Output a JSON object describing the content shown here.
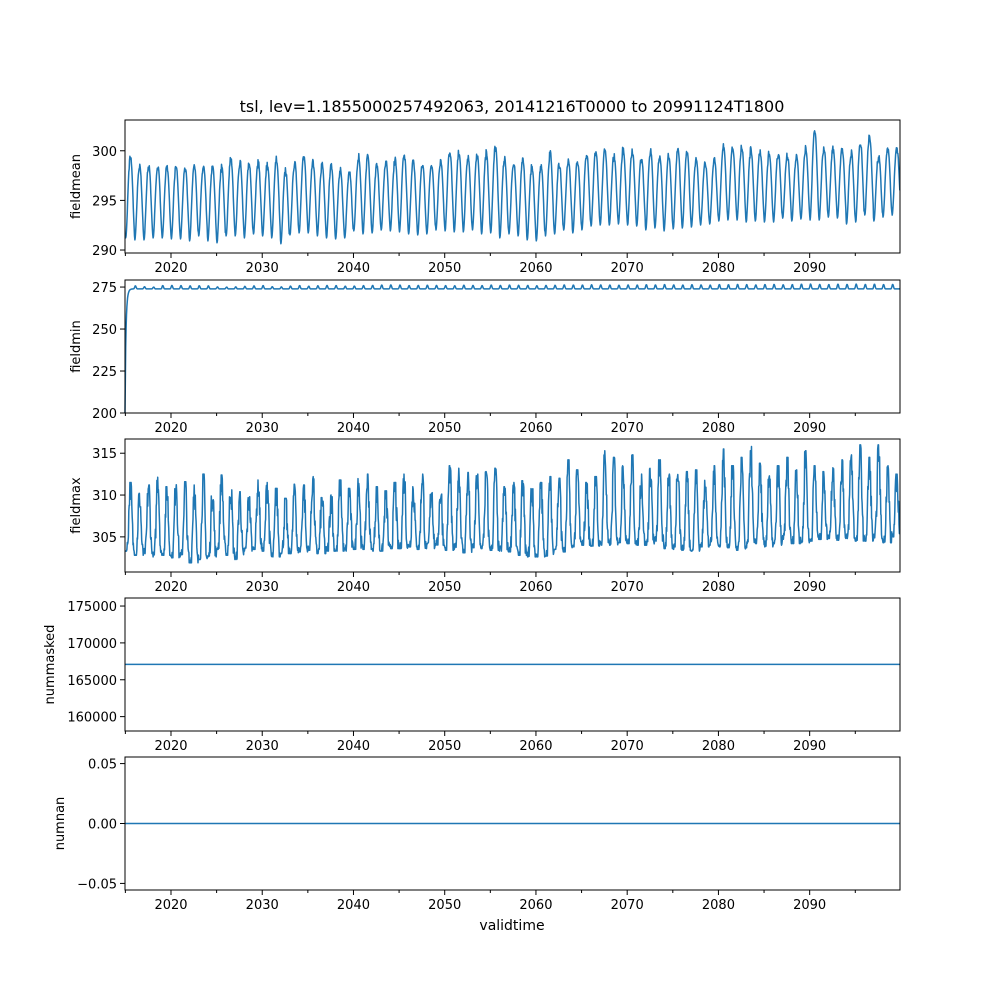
{
  "chart_data": {
    "type": "line",
    "title": "tsl, lev=1.1855000257492063, 20141216T0000 to 20991124T1800",
    "xlabel": "validtime",
    "xlim": [
      2014.96,
      2099.9
    ],
    "x_ticks": [
      "2020",
      "2030",
      "2040",
      "2050",
      "2060",
      "2070",
      "2080",
      "2090"
    ],
    "x_minor_ticks": [
      2015,
      2025,
      2035,
      2045,
      2055,
      2065,
      2075,
      2085,
      2095
    ],
    "line_color": "#1f77b4",
    "years": [
      2015,
      2099
    ],
    "panels": [
      {
        "ylabel": "fieldmean",
        "ylim": [
          289.7,
          303.1
        ],
        "y_ticks": [
          "290",
          "295",
          "300"
        ],
        "y_tick_values": [
          290,
          295,
          300
        ],
        "kind": "seasonal",
        "annual_max": [
          299.8,
          298.9,
          298.9,
          298.9,
          298.8,
          298.8,
          298.7,
          298.9,
          298.9,
          298.8,
          298.7,
          299.6,
          299.3,
          299.1,
          299.2,
          299.0,
          299.5,
          298.4,
          299.3,
          299.9,
          299.3,
          299.0,
          298.9,
          298.4,
          298.2,
          299.8,
          299.7,
          298.9,
          299.3,
          299.5,
          300.0,
          299.2,
          299.2,
          299.0,
          299.5,
          300.4,
          300.3,
          299.8,
          300.0,
          300.1,
          300.8,
          299.6,
          299.2,
          299.5,
          298.8,
          299.0,
          300.2,
          299.1,
          299.3,
          299.3,
          300.2,
          300.3,
          300.4,
          299.8,
          300.5,
          300.4,
          299.7,
          300.5,
          299.9,
          299.9,
          300.6,
          300.3,
          299.6,
          299.1,
          299.4,
          300.8,
          300.7,
          300.8,
          300.5,
          300.3,
          300.1,
          300.2,
          299.9,
          299.8,
          300.6,
          302.4,
          300.8,
          300.5,
          300.5,
          300.2,
          301.2,
          301.8,
          299.9,
          300.7,
          300.6
        ],
        "annual_min": [
          291.2,
          291.0,
          291.0,
          291.2,
          291.2,
          291.1,
          291.1,
          290.9,
          291.4,
          290.9,
          290.7,
          291.4,
          291.4,
          291.2,
          291.6,
          291.4,
          291.2,
          290.6,
          291.5,
          291.7,
          291.7,
          291.4,
          291.2,
          291.1,
          291.2,
          291.9,
          291.6,
          291.7,
          292.0,
          291.9,
          291.8,
          291.6,
          291.5,
          291.6,
          292.0,
          291.9,
          291.8,
          291.8,
          292.0,
          291.6,
          291.7,
          291.2,
          291.6,
          291.4,
          291.0,
          290.9,
          291.4,
          291.6,
          292.0,
          291.7,
          292.0,
          292.4,
          292.5,
          292.5,
          292.6,
          292.5,
          292.4,
          292.0,
          292.2,
          291.9,
          292.1,
          292.2,
          292.3,
          292.5,
          292.6,
          292.9,
          293.0,
          293.0,
          292.8,
          292.9,
          292.8,
          292.8,
          293.2,
          292.9,
          293.1,
          293.0,
          293.0,
          293.3,
          293.2,
          292.6,
          292.8,
          293.5,
          292.9,
          293.3,
          293.5
        ]
      },
      {
        "ylabel": "fieldmin",
        "ylim": [
          200,
          279.2
        ],
        "y_ticks": [
          "200",
          "225",
          "250",
          "275"
        ],
        "y_tick_values": [
          200,
          225,
          250,
          275
        ],
        "kind": "spinup",
        "start_value": 200,
        "base": 273.9,
        "annual_peak": [
          275.6,
          275.7,
          275.2,
          275.0,
          275.9,
          276.0,
          275.9,
          275.7,
          275.8,
          275.7,
          275.1,
          275.0,
          275.1,
          275.4,
          275.7,
          275.9,
          275.2,
          275.1,
          275.6,
          275.9,
          275.5,
          275.8,
          276.0,
          275.9,
          275.5,
          275.6,
          275.9,
          276.0,
          276.2,
          276.3,
          276.2,
          275.9,
          276.0,
          276.1,
          276.0,
          275.9,
          275.8,
          276.1,
          276.0,
          275.9,
          276.2,
          276.0,
          276.2,
          276.1,
          276.0,
          275.8,
          276.0,
          276.1,
          276.3,
          276.2,
          276.2,
          276.4,
          276.3,
          276.2,
          276.1,
          276.3,
          276.2,
          276.4,
          276.3,
          276.5,
          276.3,
          276.2,
          276.4,
          276.3,
          276.2,
          276.5,
          276.4,
          276.6,
          276.5,
          276.3,
          276.5,
          276.6,
          276.4,
          276.5,
          276.7,
          276.8,
          276.6,
          276.5,
          276.7,
          276.6,
          276.8,
          276.6,
          276.7,
          276.5,
          276.6
        ]
      },
      {
        "ylabel": "fieldmax",
        "ylim": [
          300.8,
          316.7
        ],
        "y_ticks": [
          "305",
          "310",
          "315"
        ],
        "y_tick_values": [
          305,
          310,
          315
        ],
        "kind": "noisy",
        "annual_max": [
          311.5,
          310.2,
          311.2,
          312.5,
          311.0,
          312.0,
          311.6,
          311.2,
          312.5,
          310.5,
          312.4,
          311.0,
          310.4,
          309.8,
          311.8,
          311.5,
          310.8,
          309.6,
          311.3,
          311.2,
          312.2,
          309.7,
          310.0,
          311.8,
          310.8,
          312.0,
          312.5,
          311.0,
          310.5,
          311.5,
          312.5,
          311.0,
          312.5,
          311.0,
          310.5,
          313.5,
          313.2,
          312.7,
          312.5,
          312.8,
          313.2,
          311.0,
          311.5,
          311.7,
          311.0,
          311.5,
          312.2,
          312.0,
          314.2,
          313.0,
          311.5,
          312.2,
          315.3,
          314.5,
          313.5,
          314.8,
          312.5,
          313.2,
          314.2,
          312.5,
          313.8,
          312.8,
          313.0,
          312.5,
          313.5,
          315.5,
          313.5,
          314.5,
          315.8,
          313.8,
          312.5,
          313.5,
          314.5,
          313.0,
          315.3,
          313.5,
          312.8,
          313.8,
          314.2,
          314.8,
          316.0,
          314.5,
          316.0,
          313.5,
          312.5
        ],
        "annual_min": [
          303.3,
          302.8,
          303.0,
          302.6,
          302.8,
          302.5,
          302.6,
          301.9,
          302.3,
          302.6,
          303.5,
          302.8,
          302.3,
          303.3,
          303.5,
          303.3,
          302.6,
          303.0,
          303.0,
          303.2,
          303.4,
          303.0,
          303.3,
          303.3,
          303.3,
          303.5,
          303.5,
          303.3,
          303.3,
          303.6,
          303.6,
          303.8,
          303.5,
          303.6,
          304.0,
          303.4,
          303.5,
          303.1,
          303.7,
          303.6,
          303.4,
          303.3,
          303.2,
          302.8,
          302.6,
          302.6,
          302.7,
          303.5,
          303.2,
          303.8,
          304.0,
          303.9,
          304.0,
          304.0,
          304.3,
          304.2,
          304.0,
          304.0,
          304.5,
          303.6,
          303.5,
          303.4,
          303.3,
          303.8,
          304.0,
          303.8,
          303.7,
          303.4,
          303.7,
          304.2,
          303.8,
          304.0,
          304.6,
          304.2,
          304.3,
          304.5,
          304.7,
          304.8,
          304.6,
          304.8,
          304.5,
          304.5,
          304.8,
          304.3,
          305.0
        ]
      },
      {
        "ylabel": "nummasked",
        "ylim": [
          158050,
          176090
        ],
        "y_ticks": [
          "160000",
          "165000",
          "170000",
          "175000"
        ],
        "y_tick_values": [
          160000,
          165000,
          170000,
          175000
        ],
        "kind": "constant",
        "value": 167090
      },
      {
        "ylabel": "numnan",
        "ylim": [
          -0.0555,
          0.0555
        ],
        "y_ticks": [
          "−0.05",
          "0.00",
          "0.05"
        ],
        "y_tick_values": [
          -0.05,
          0,
          0.05
        ],
        "kind": "constant",
        "value": 0
      }
    ]
  }
}
